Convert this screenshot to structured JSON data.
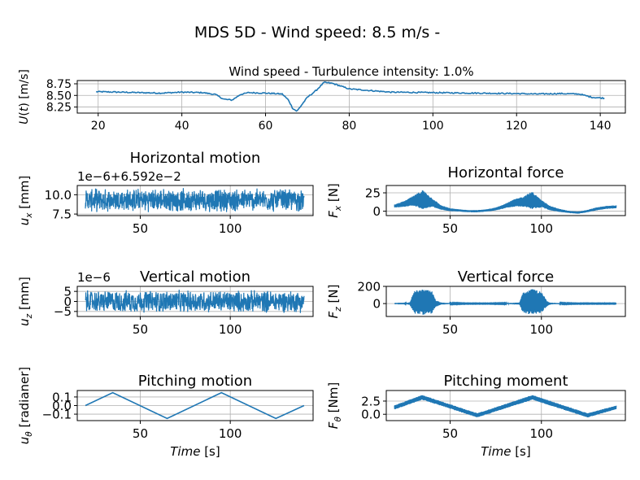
{
  "figure": {
    "suptitle": "MDS 5D - Wind speed: 8.5 m/s -"
  },
  "colors": {
    "series": "#1f77b4",
    "grid": "#b0b0b0",
    "axis": "#000000",
    "background": "#ffffff"
  },
  "chart_data": [
    {
      "id": "wind",
      "type": "line",
      "title": "Wind speed - Turbulence intensity: 1.0%",
      "xlabel": "",
      "ylabel": "U(t) [m/s]",
      "xlim": [
        15,
        146
      ],
      "ylim": [
        8.12,
        8.82
      ],
      "xticks": [
        20,
        40,
        60,
        80,
        100,
        120,
        140
      ],
      "yticks": [
        8.25,
        8.5,
        8.75
      ],
      "ytick_labels": [
        "8.25",
        "8.50",
        "8.75"
      ],
      "grid": true,
      "series": [
        {
          "x": [
            19.5,
            25,
            30,
            35,
            40,
            45,
            48,
            50,
            52,
            54,
            56,
            60,
            64,
            65.5,
            66.5,
            67.5,
            68.5,
            70,
            72,
            74,
            76,
            80,
            90,
            100,
            110,
            120,
            125,
            130,
            135,
            138,
            141
          ],
          "y": [
            8.58,
            8.57,
            8.56,
            8.55,
            8.57,
            8.56,
            8.52,
            8.42,
            8.4,
            8.52,
            8.56,
            8.55,
            8.53,
            8.4,
            8.22,
            8.16,
            8.28,
            8.46,
            8.6,
            8.78,
            8.76,
            8.64,
            8.57,
            8.56,
            8.55,
            8.54,
            8.53,
            8.54,
            8.53,
            8.46,
            8.44
          ]
        }
      ]
    },
    {
      "id": "hmotion",
      "type": "line",
      "title": "Horizontal motion",
      "ylabel": "u_x [mm]",
      "offset_text": "1e−6+6.592e−2",
      "xlim": [
        15,
        146
      ],
      "ylim": [
        7.3,
        11.2
      ],
      "xticks": [
        50,
        100
      ],
      "yticks": [
        7.5,
        10.0
      ],
      "ytick_labels": [
        "7.5",
        "10.0"
      ],
      "grid": true,
      "noise": {
        "x_start": 19.5,
        "x_end": 141,
        "center": 9.3,
        "amplitude": 1.6,
        "envelope": "flat"
      }
    },
    {
      "id": "hforce",
      "type": "line",
      "title": "Horizontal force",
      "ylabel": "F_x [N]",
      "xlim": [
        15,
        146
      ],
      "ylim": [
        -6,
        35
      ],
      "xticks": [
        50,
        100
      ],
      "yticks": [
        0,
        25
      ],
      "ytick_labels": [
        "0",
        "25"
      ],
      "grid": true,
      "envelope": {
        "x": [
          19.5,
          25,
          30,
          35,
          40,
          45,
          50,
          55,
          60,
          65,
          70,
          75,
          80,
          85,
          90,
          95,
          100,
          105,
          110,
          115,
          120,
          125,
          130,
          135,
          141
        ],
        "center": [
          7,
          10,
          14,
          16,
          12,
          5,
          2,
          1,
          0,
          0,
          1,
          3,
          7,
          11,
          13,
          15,
          10,
          4,
          1,
          -1,
          -2,
          0,
          3,
          5,
          6
        ],
        "half_width": [
          2,
          4,
          7,
          13,
          6,
          3,
          2,
          1.5,
          1.5,
          1.5,
          1.5,
          2,
          3,
          5,
          7,
          12,
          5,
          3,
          2,
          1.5,
          1.5,
          1.5,
          2,
          2,
          2
        ]
      }
    },
    {
      "id": "vmotion",
      "type": "line",
      "title": "Vertical motion",
      "ylabel": "u_z [mm]",
      "offset_text": "1e−6",
      "xlim": [
        15,
        146
      ],
      "ylim": [
        -7.5,
        7.5
      ],
      "xticks": [
        50,
        100
      ],
      "yticks": [
        -5,
        0,
        5
      ],
      "ytick_labels": [
        "−5",
        "0",
        "5"
      ],
      "grid": true,
      "noise": {
        "x_start": 19.5,
        "x_end": 141,
        "center": 0,
        "amplitude": 6,
        "envelope": "flat"
      }
    },
    {
      "id": "vforce",
      "type": "line",
      "title": "Vertical force",
      "ylabel": "F_z [N]",
      "xlim": [
        15,
        146
      ],
      "ylim": [
        -150,
        200
      ],
      "xticks": [
        50,
        100
      ],
      "yticks": [
        0,
        200
      ],
      "ytick_labels": [
        "0",
        "200"
      ],
      "grid": true,
      "envelope": {
        "x": [
          19.5,
          25,
          28,
          30,
          35,
          40,
          42,
          45,
          50,
          60,
          70,
          80,
          88,
          90,
          95,
          100,
          103,
          105,
          110,
          120,
          130,
          141
        ],
        "center": [
          0,
          0,
          0,
          15,
          20,
          15,
          0,
          0,
          0,
          0,
          0,
          0,
          0,
          10,
          20,
          15,
          0,
          0,
          0,
          0,
          0,
          0
        ],
        "half_width": [
          1,
          2,
          15,
          130,
          150,
          130,
          40,
          12,
          5,
          3,
          3,
          4,
          12,
          120,
          150,
          125,
          30,
          10,
          5,
          3,
          3,
          3
        ]
      }
    },
    {
      "id": "pmotion",
      "type": "line",
      "title": "Pitching motion",
      "ylabel": "u_θ [radianer]",
      "xlabel": "Time [s]",
      "xlim": [
        15,
        146
      ],
      "ylim": [
        -0.175,
        0.175
      ],
      "xticks": [
        50,
        100
      ],
      "yticks": [
        -0.1,
        0.0,
        0.1
      ],
      "ytick_labels": [
        "−0.1",
        "0.0",
        "0.1"
      ],
      "grid": true,
      "series": [
        {
          "x": [
            19.5,
            34.7,
            64.9,
            95.1,
            125.3,
            141
          ],
          "y": [
            0.0,
            0.15,
            -0.15,
            0.15,
            -0.15,
            0.0
          ]
        }
      ]
    },
    {
      "id": "pmoment",
      "type": "line",
      "title": "Pitching moment",
      "ylabel": "F_θ [Nm]",
      "xlabel": "Time [s]",
      "xlim": [
        15,
        146
      ],
      "ylim": [
        -1.2,
        4.5
      ],
      "xticks": [
        50,
        100
      ],
      "yticks": [
        0.0,
        2.5
      ],
      "ytick_labels": [
        "0.0",
        "2.5"
      ],
      "grid": true,
      "envelope": {
        "x": [
          19.5,
          34.7,
          64.9,
          95.1,
          125.3,
          141
        ],
        "center": [
          1.3,
          3.2,
          -0.2,
          3.2,
          -0.2,
          1.3
        ],
        "half_width": [
          0.4,
          0.45,
          0.4,
          0.45,
          0.4,
          0.35
        ]
      }
    }
  ]
}
